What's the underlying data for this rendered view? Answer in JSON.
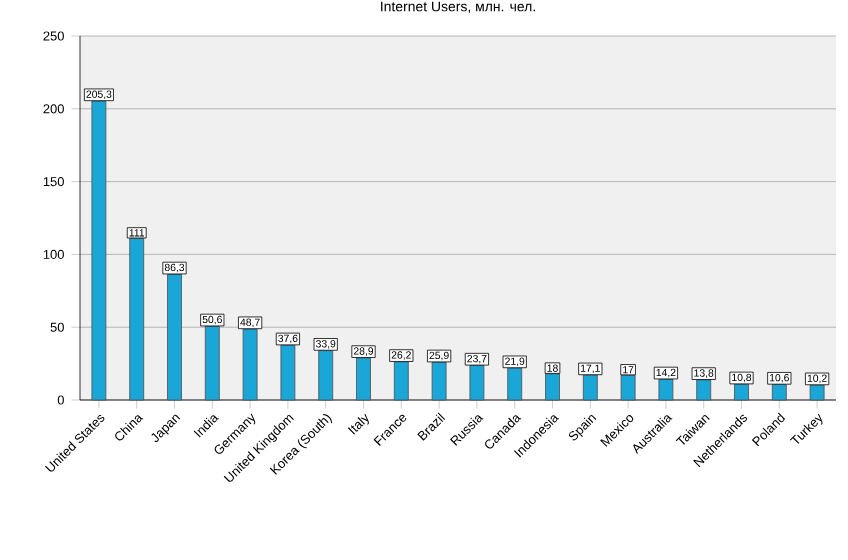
{
  "chart_data": {
    "type": "bar",
    "title": "Internet Users, млн. чел.",
    "categories": [
      "United States",
      "China",
      "Japan",
      "India",
      "Germany",
      "United Kingdom",
      "Korea (South)",
      "Italy",
      "France",
      "Brazil",
      "Russia",
      "Canada",
      "Indonesia",
      "Spain",
      "Mexico",
      "Australia",
      "Taiwan",
      "Netherlands",
      "Poland",
      "Turkey"
    ],
    "values": [
      205.3,
      111,
      86.3,
      50.6,
      48.7,
      37.6,
      33.9,
      28.9,
      26.2,
      25.9,
      23.7,
      21.9,
      18,
      17.1,
      17,
      14.2,
      13.8,
      10.8,
      10.6,
      10.2
    ],
    "value_labels": [
      "205,3",
      "111",
      "86,3",
      "50,6",
      "48,7",
      "37,6",
      "33,9",
      "28,9",
      "26,2",
      "25,9",
      "23,7",
      "21,9",
      "18",
      "17,1",
      "17",
      "14,2",
      "13,8",
      "10,8",
      "10,6",
      "10,2"
    ],
    "color": "#1aa7d8",
    "ylim": [
      0,
      250
    ],
    "yticks": [
      0,
      50,
      100,
      150,
      200,
      250
    ],
    "grid": "y"
  }
}
